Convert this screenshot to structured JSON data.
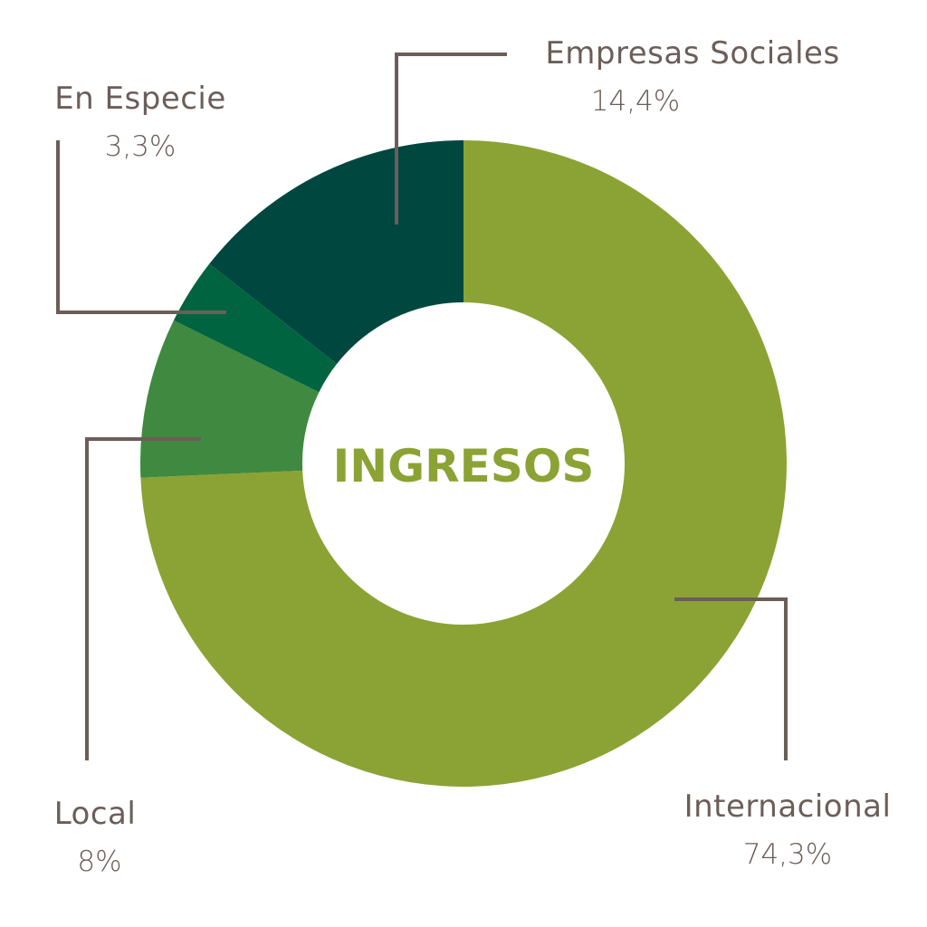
{
  "chart_data": {
    "type": "pie",
    "title": "INGRESOS",
    "slices": [
      {
        "label": "Internacional",
        "value_label": "74,3%",
        "value": 74.3,
        "color": "#8ba334"
      },
      {
        "label": "Local",
        "value_label": "8%",
        "value": 8.0,
        "color": "#3f8a40"
      },
      {
        "label": "En Especie",
        "value_label": "3,3%",
        "value": 3.3,
        "color": "#016440"
      },
      {
        "label": "Empresas Sociales",
        "value_label": "14,4%",
        "value": 14.4,
        "color": "#004740"
      }
    ],
    "title_color": "#8ba334",
    "label_color": "#6b5e58"
  }
}
